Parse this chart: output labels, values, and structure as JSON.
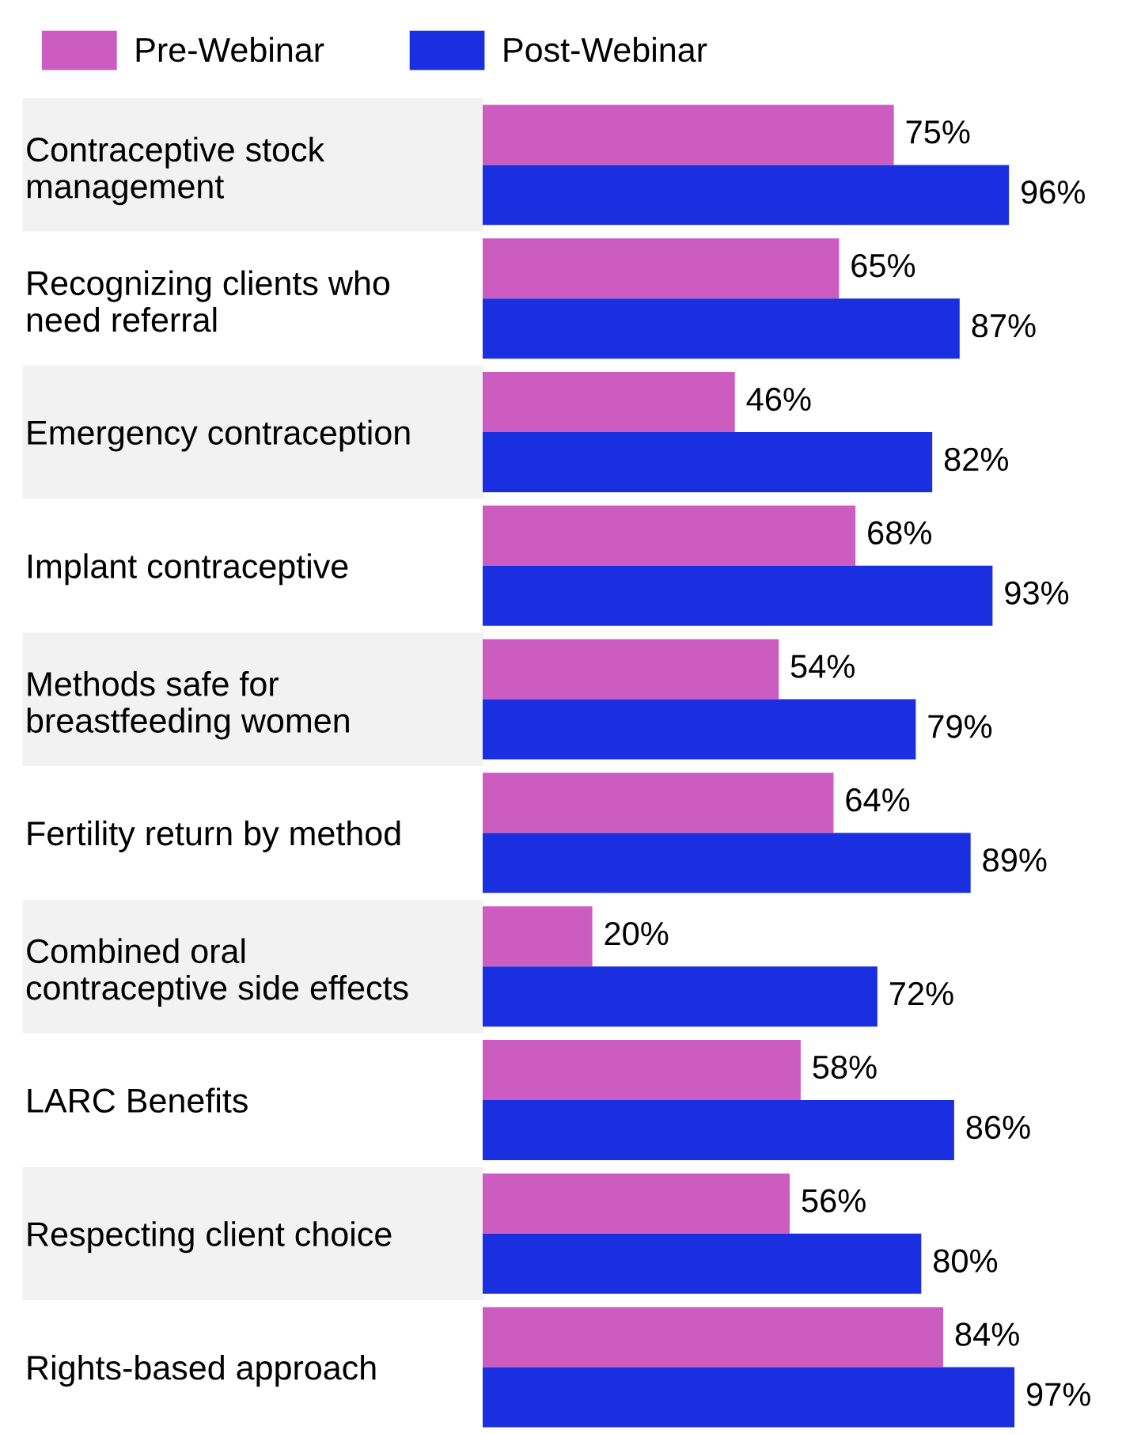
{
  "chart_data": {
    "type": "bar",
    "orientation": "horizontal",
    "legend": "top left",
    "grid": false,
    "categories": [
      "Contraceptive stock\nmanagement",
      "Recognizing clients who\nneed referral",
      "Emergency contraception",
      "Implant contraceptive",
      "Methods safe for\nbreastfeeding women",
      "Fertility return by method",
      "Combined oral\ncontraceptive side effects",
      "LARC Benefits",
      "Respecting client choice",
      "Rights-based approach"
    ],
    "series": [
      {
        "name": "Pre-Webinar",
        "color": "#cc5cc0",
        "values": [
          75,
          65,
          46,
          68,
          54,
          64,
          20,
          58,
          56,
          84
        ],
        "value_labels": [
          "75%",
          "65%",
          "46%",
          "68%",
          "54%",
          "64%",
          "20%",
          "58%",
          "56%",
          "84%"
        ]
      },
      {
        "name": "Post-Webinar",
        "color": "#1a30e0",
        "values": [
          96,
          87,
          82,
          93,
          79,
          89,
          72,
          86,
          80,
          97
        ],
        "value_labels": [
          "96%",
          "87%",
          "82%",
          "93%",
          "79%",
          "89%",
          "72%",
          "86%",
          "80%",
          "97%"
        ]
      }
    ]
  }
}
